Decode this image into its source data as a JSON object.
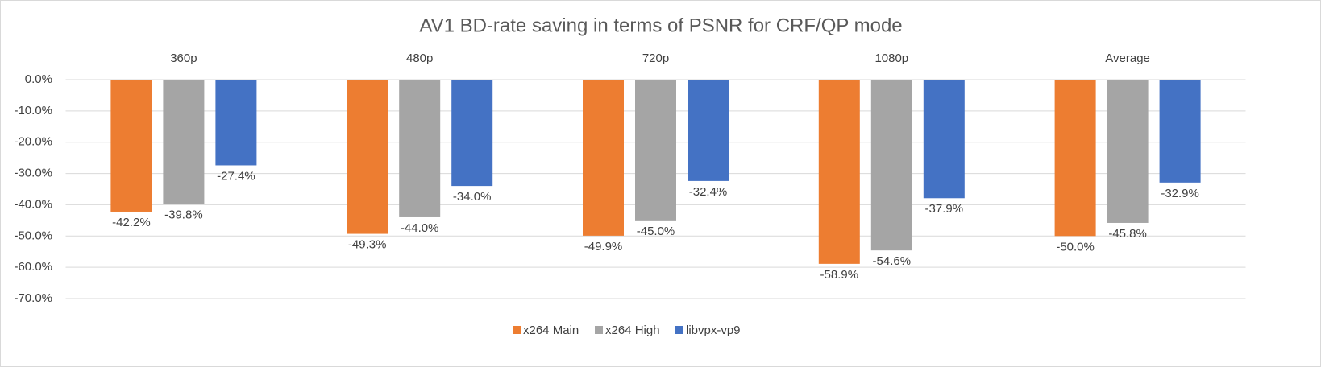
{
  "chart_data": {
    "type": "bar",
    "title": "AV1 BD-rate saving in terms of PSNR for CRF/QP mode",
    "categories": [
      "360p",
      "480p",
      "720p",
      "1080p",
      "Average"
    ],
    "series": [
      {
        "name": "x264 Main",
        "color": "#ed7d31",
        "values": [
          -42.2,
          -49.3,
          -49.9,
          -58.9,
          -50.0
        ],
        "value_labels": [
          "-42.2%",
          "-49.3%",
          "-49.9%",
          "-58.9%",
          "-50.0%"
        ]
      },
      {
        "name": "x264 High",
        "color": "#a5a5a5",
        "values": [
          -39.8,
          -44.0,
          -45.0,
          -54.6,
          -45.8
        ],
        "value_labels": [
          "-39.8%",
          "-44.0%",
          "-45.0%",
          "-54.6%",
          "-45.8%"
        ]
      },
      {
        "name": "libvpx-vp9",
        "color": "#4472c4",
        "values": [
          -27.4,
          -34.0,
          -32.4,
          -37.9,
          -32.9
        ],
        "value_labels": [
          "-27.4%",
          "-34.0%",
          "-32.4%",
          "-37.9%",
          "-32.9%"
        ]
      }
    ],
    "ylim": [
      -70,
      0
    ],
    "yticks": [
      {
        "value": 0,
        "label": "0.0%"
      },
      {
        "value": -10,
        "label": "-10.0%"
      },
      {
        "value": -20,
        "label": "-20.0%"
      },
      {
        "value": -30,
        "label": "-30.0%"
      },
      {
        "value": -40,
        "label": "-40.0%"
      },
      {
        "value": -50,
        "label": "-50.0%"
      },
      {
        "value": -60,
        "label": "-60.0%"
      },
      {
        "value": -70,
        "label": "-70.0%"
      }
    ],
    "grid": true,
    "legend": "bottom"
  }
}
